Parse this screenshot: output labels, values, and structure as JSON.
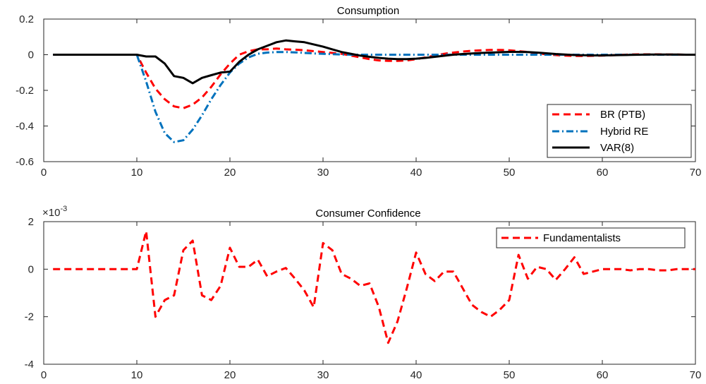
{
  "chart_data": [
    {
      "type": "line",
      "title": "Consumption",
      "xlabel": "",
      "ylabel": "",
      "xlim": [
        0,
        70
      ],
      "ylim": [
        -0.6,
        0.2
      ],
      "xticks": [
        0,
        10,
        20,
        30,
        40,
        50,
        60,
        70
      ],
      "yticks": [
        -0.6,
        -0.4,
        -0.2,
        0,
        0.2
      ],
      "xtick_labels": [
        "0",
        "10",
        "20",
        "30",
        "40",
        "50",
        "60",
        "70"
      ],
      "ytick_labels": [
        "-0.6",
        "-0.4",
        "-0.2",
        "0",
        "0.2"
      ],
      "grid": false,
      "legend_position": "lower-right",
      "series": [
        {
          "name": "BR (PTB)",
          "color": "#ff0000",
          "style": "dashed",
          "x": [
            1,
            2,
            3,
            4,
            5,
            6,
            7,
            8,
            9,
            10,
            11,
            12,
            13,
            14,
            15,
            16,
            17,
            18,
            19,
            20,
            21,
            22,
            23,
            24,
            25,
            26,
            27,
            28,
            29,
            30,
            31,
            32,
            33,
            34,
            35,
            36,
            37,
            38,
            39,
            40,
            41,
            42,
            43,
            44,
            45,
            46,
            47,
            48,
            49,
            50,
            51,
            52,
            53,
            54,
            55,
            56,
            57,
            58,
            59,
            60,
            61,
            62,
            63,
            64,
            65,
            66,
            67,
            68,
            69,
            70
          ],
          "y": [
            0,
            0,
            0,
            0,
            0,
            0,
            0,
            0,
            0,
            0,
            -0.1,
            -0.19,
            -0.25,
            -0.29,
            -0.3,
            -0.28,
            -0.24,
            -0.18,
            -0.11,
            -0.05,
            0,
            0.02,
            0.03,
            0.03,
            0.035,
            0.03,
            0.028,
            0.025,
            0.02,
            0.015,
            0.01,
            0.005,
            -0.005,
            -0.015,
            -0.025,
            -0.032,
            -0.035,
            -0.035,
            -0.032,
            -0.025,
            -0.015,
            -0.005,
            0.005,
            0.012,
            0.018,
            0.022,
            0.025,
            0.027,
            0.027,
            0.025,
            0.02,
            0.015,
            0.008,
            0.002,
            -0.002,
            -0.005,
            -0.007,
            -0.007,
            -0.006,
            -0.005,
            -0.003,
            -0.001,
            0.001,
            0.002,
            0.002,
            0.002,
            0.001,
            0.001,
            0,
            0
          ]
        },
        {
          "name": "Hybrid RE",
          "color": "#0072bd",
          "style": "dashdot",
          "x": [
            1,
            2,
            3,
            4,
            5,
            6,
            7,
            8,
            9,
            10,
            11,
            12,
            13,
            14,
            15,
            16,
            17,
            18,
            19,
            20,
            21,
            22,
            23,
            24,
            25,
            26,
            27,
            28,
            29,
            30,
            31,
            32,
            33,
            34,
            35,
            36,
            37,
            38,
            39,
            40,
            41,
            42,
            43,
            44,
            45,
            46,
            47,
            48,
            49,
            50,
            51,
            52,
            53,
            54,
            55,
            56,
            57,
            58,
            59,
            60,
            61,
            62,
            63,
            64,
            65,
            66,
            67,
            68,
            69,
            70
          ],
          "y": [
            0,
            0,
            0,
            0,
            0,
            0,
            0,
            0,
            0,
            0,
            -0.15,
            -0.32,
            -0.44,
            -0.49,
            -0.48,
            -0.42,
            -0.34,
            -0.25,
            -0.17,
            -0.1,
            -0.05,
            -0.015,
            0.005,
            0.012,
            0.015,
            0.015,
            0.013,
            0.01,
            0.007,
            0.005,
            0.003,
            0.001,
            0,
            0,
            0,
            0,
            0,
            0,
            0,
            0,
            0,
            0,
            0,
            0,
            0,
            0,
            0,
            0,
            0,
            0,
            0,
            0,
            0,
            0,
            0,
            0,
            0,
            0,
            0,
            0,
            0,
            0,
            0,
            0,
            0,
            0,
            0,
            0,
            0,
            0
          ]
        },
        {
          "name": "VAR(8)",
          "color": "#000000",
          "style": "solid",
          "x": [
            1,
            2,
            3,
            4,
            5,
            6,
            7,
            8,
            9,
            10,
            11,
            12,
            13,
            14,
            15,
            16,
            17,
            18,
            19,
            20,
            21,
            22,
            23,
            24,
            25,
            26,
            27,
            28,
            29,
            30,
            31,
            32,
            33,
            34,
            35,
            36,
            37,
            38,
            39,
            40,
            41,
            42,
            43,
            44,
            45,
            46,
            47,
            48,
            49,
            50,
            51,
            52,
            53,
            54,
            55,
            56,
            57,
            58,
            59,
            60,
            61,
            62,
            63,
            64,
            65,
            66,
            67,
            68,
            69,
            70
          ],
          "y": [
            0,
            0,
            0,
            0,
            0,
            0,
            0,
            0,
            0,
            0,
            -0.01,
            -0.01,
            -0.05,
            -0.12,
            -0.13,
            -0.16,
            -0.13,
            -0.115,
            -0.1,
            -0.095,
            -0.04,
            0,
            0.03,
            0.05,
            0.07,
            0.08,
            0.075,
            0.07,
            0.058,
            0.045,
            0.03,
            0.015,
            0.005,
            -0.005,
            -0.012,
            -0.018,
            -0.022,
            -0.025,
            -0.025,
            -0.022,
            -0.018,
            -0.012,
            -0.006,
            0,
            0.004,
            0.007,
            0.01,
            0.012,
            0.014,
            0.016,
            0.016,
            0.015,
            0.012,
            0.008,
            0.004,
            0.001,
            -0.002,
            -0.003,
            -0.004,
            -0.004,
            -0.003,
            -0.002,
            -0.001,
            0,
            0.001,
            0.001,
            0.001,
            0.001,
            0,
            0
          ]
        }
      ]
    },
    {
      "type": "line",
      "title": "Consumer Confidence",
      "xlabel": "",
      "ylabel": "",
      "y_exponent_label": "×10",
      "y_exponent": "-3",
      "xlim": [
        0,
        70
      ],
      "ylim": [
        -4,
        2
      ],
      "xticks": [
        0,
        10,
        20,
        30,
        40,
        50,
        60,
        70
      ],
      "yticks": [
        -4,
        -2,
        0,
        2
      ],
      "xtick_labels": [
        "0",
        "10",
        "20",
        "30",
        "40",
        "50",
        "60",
        "70"
      ],
      "ytick_labels": [
        "-4",
        "-2",
        "0",
        "2"
      ],
      "grid": false,
      "legend_position": "top-right",
      "series": [
        {
          "name": "Fundamentalists",
          "color": "#ff0000",
          "style": "dashed",
          "x": [
            1,
            2,
            3,
            4,
            5,
            6,
            7,
            8,
            9,
            10,
            11,
            12,
            13,
            14,
            15,
            16,
            17,
            18,
            19,
            20,
            21,
            22,
            23,
            24,
            25,
            26,
            27,
            28,
            29,
            30,
            31,
            32,
            33,
            34,
            35,
            36,
            37,
            38,
            39,
            40,
            41,
            42,
            43,
            44,
            45,
            46,
            47,
            48,
            49,
            50,
            51,
            52,
            53,
            54,
            55,
            56,
            57,
            58,
            59,
            60,
            61,
            62,
            63,
            64,
            65,
            66,
            67,
            68,
            69,
            70
          ],
          "y": [
            0,
            0,
            0,
            0,
            0,
            0,
            0,
            0,
            0,
            0,
            1.6,
            -2.0,
            -1.3,
            -1.1,
            0.8,
            1.2,
            -1.1,
            -1.3,
            -0.7,
            0.9,
            0.1,
            0.1,
            0.4,
            -0.3,
            -0.1,
            0.05,
            -0.4,
            -0.9,
            -1.6,
            1.1,
            0.8,
            -0.2,
            -0.4,
            -0.7,
            -0.6,
            -1.6,
            -3.1,
            -2.2,
            -0.8,
            0.7,
            -0.2,
            -0.5,
            -0.1,
            -0.1,
            -0.8,
            -1.5,
            -1.8,
            -2.0,
            -1.7,
            -1.3,
            0.6,
            -0.4,
            0.1,
            0,
            -0.45,
            0,
            0.5,
            -0.2,
            -0.1,
            0,
            0,
            0,
            -0.05,
            0,
            0,
            -0.05,
            -0.05,
            0,
            0,
            0
          ]
        }
      ]
    }
  ]
}
